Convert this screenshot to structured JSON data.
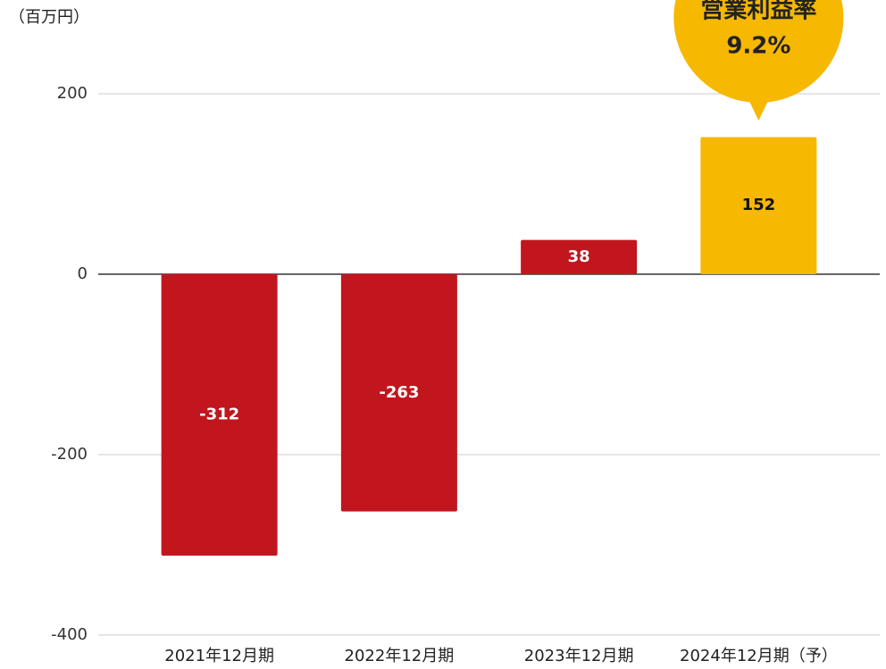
{
  "chart_data": {
    "type": "bar",
    "unit_label": "（百万円）",
    "categories": [
      "2021年12月期",
      "2022年12月期",
      "2023年12月期",
      "2024年12月期（予）"
    ],
    "values": [
      -312,
      -263,
      38,
      152
    ],
    "colors": [
      "#c1161e",
      "#c1161e",
      "#c1161e",
      "#f6b800"
    ],
    "label_colors": [
      "#ffffff",
      "#ffffff",
      "#ffffff",
      "#111111"
    ],
    "ylim": [
      -400,
      200
    ],
    "yticks": [
      200,
      0,
      -200,
      -400
    ],
    "grid": true,
    "annotation": {
      "lines": [
        "営業利益率",
        "9.2%"
      ],
      "color": "#f6b800",
      "category": 3
    }
  }
}
